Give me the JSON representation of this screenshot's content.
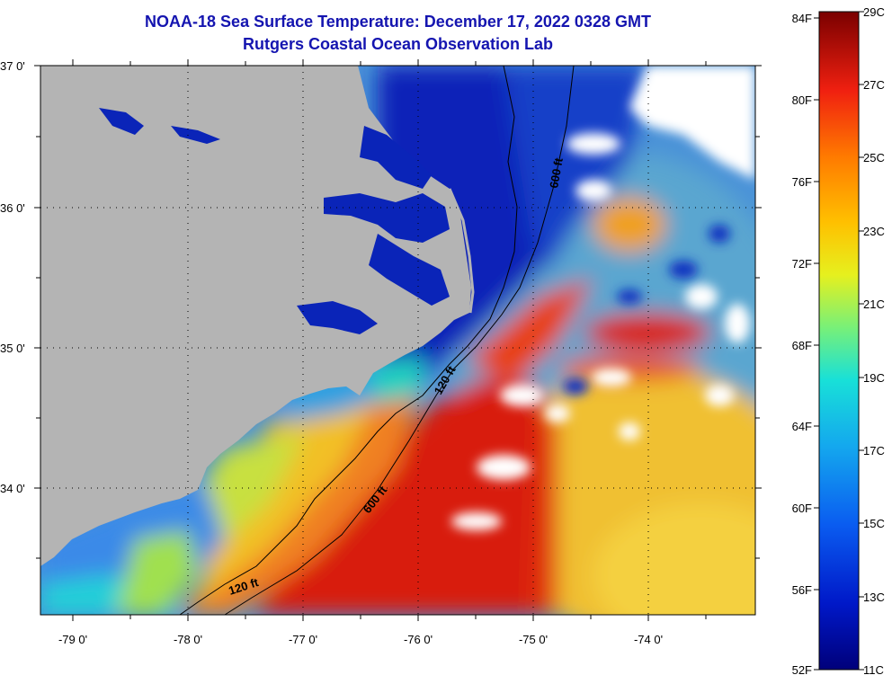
{
  "title": {
    "line1": "NOAA-18 Sea Surface Temperature:  December 17, 2022 0328 GMT",
    "line2": "Rutgers Coastal Ocean Observation Lab"
  },
  "map": {
    "lat_labels": [
      "37 0'",
      "36 0'",
      "35 0'",
      "34 0'"
    ],
    "lon_labels": [
      "-79 0'",
      "-78 0'",
      "-77 0'",
      "-76 0'",
      "-75 0'",
      "-74 0'"
    ],
    "isobaths": [
      {
        "depth_label": "600 ft"
      },
      {
        "depth_label": "600 ft"
      },
      {
        "depth_label": "120 ft"
      },
      {
        "depth_label": "120 ft"
      }
    ],
    "colors": {
      "land": "#b4b4b4",
      "cloud": "#ffffff",
      "cold": "#0a1fb0",
      "warm": "#d81810"
    }
  },
  "colorbar": {
    "fahrenheit_labels": [
      "84F",
      "80F",
      "76F",
      "72F",
      "68F",
      "64F",
      "60F",
      "56F",
      "52F"
    ],
    "celsius_labels": [
      "29C",
      "27C",
      "25C",
      "23C",
      "21C",
      "19C",
      "17C",
      "15C",
      "13C",
      "11C"
    ]
  }
}
